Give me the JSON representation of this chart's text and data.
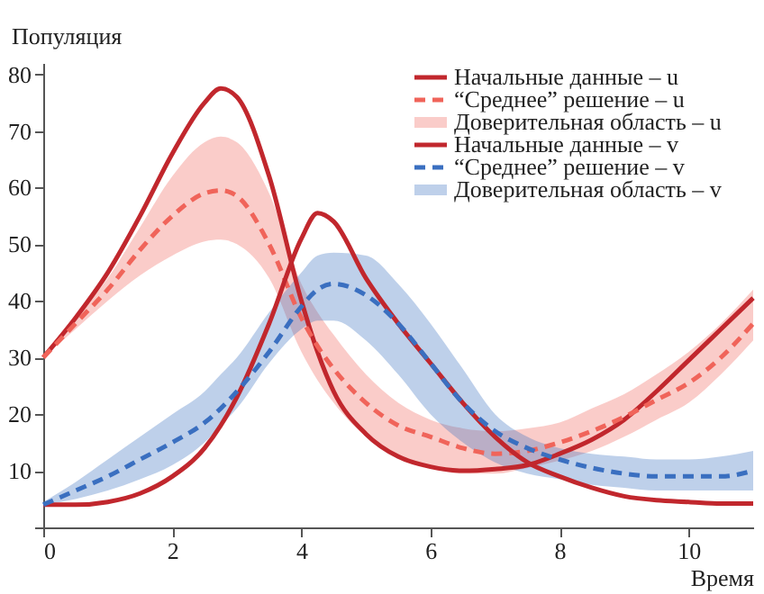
{
  "chart_data": {
    "type": "line",
    "xlabel": "Время",
    "ylabel": "Популяция",
    "x": [
      0,
      0.5,
      1,
      1.5,
      2,
      2.5,
      2.75,
      3,
      3.5,
      4,
      4.25,
      4.5,
      5,
      5.5,
      6,
      6.5,
      7,
      7.5,
      8,
      8.5,
      9,
      9.5,
      10,
      10.5,
      11
    ],
    "xlim": [
      0,
      11
    ],
    "xticks": [
      0,
      2,
      4,
      6,
      8,
      10
    ],
    "ylim": [
      0,
      82
    ],
    "yticks": [
      {
        "value": 0,
        "label": null
      },
      10,
      20,
      30,
      40,
      50,
      60,
      70,
      80
    ],
    "grid": false,
    "legend": "top right",
    "annotations": [
      "Доверительная область – u",
      "Доверительная область – v"
    ],
    "series": [
      {
        "name": "Начальные данные – u",
        "color": "#c1272d",
        "line_style": "solid",
        "values": [
          30,
          37,
          45,
          55,
          66,
          75,
          77.5,
          76,
          62,
          40,
          31,
          24,
          16.5,
          12.5,
          10.7,
          10,
          10.3,
          11,
          13,
          15.5,
          19,
          24,
          29.5,
          35,
          40.5
        ]
      },
      {
        "name": "“Среднее” решение – u",
        "color": "#f0645a",
        "line_style": "dashed",
        "values": [
          30,
          36,
          42,
          49,
          55,
          59,
          59.5,
          58.5,
          50,
          37,
          32,
          28,
          22,
          18,
          16,
          14,
          13,
          13.5,
          15,
          17,
          19.5,
          22.5,
          25.5,
          30,
          36
        ],
        "lower": [
          30,
          35,
          40,
          44.5,
          48,
          50.5,
          50.8,
          50,
          44,
          31,
          26,
          22,
          16,
          12.5,
          10.5,
          9.5,
          9.5,
          10.5,
          11.8,
          13.5,
          16,
          19,
          22,
          27,
          33
        ],
        "upper": [
          30,
          37,
          44,
          53,
          62,
          68,
          69,
          68,
          59,
          43,
          38,
          34,
          27,
          22,
          19,
          17.5,
          17,
          17.5,
          18.5,
          21,
          23.5,
          27,
          31,
          36,
          42
        ]
      },
      {
        "name": "Начальные данные – v",
        "color": "#c1272d",
        "line_style": "solid",
        "values": [
          4,
          4,
          4.5,
          6,
          9,
          14,
          18,
          23,
          36,
          51,
          55.5,
          54,
          44,
          36,
          29,
          22,
          16,
          11.5,
          9,
          7,
          5.5,
          4.8,
          4.5,
          4.2,
          4.2
        ]
      },
      {
        "name": "“Среднее” решение – v",
        "color": "#3a6fc0",
        "line_style": "dashed",
        "values": [
          4,
          6.5,
          9,
          12,
          15,
          18.5,
          21,
          24,
          31,
          39,
          42,
          43,
          41,
          36,
          29,
          22,
          17,
          14,
          12,
          10.5,
          9.5,
          9,
          9,
          9,
          10
        ],
        "lower": [
          4,
          5,
          6.5,
          8.5,
          11,
          15,
          18,
          21,
          29,
          35,
          36.5,
          36.5,
          33,
          27,
          20,
          15,
          11.5,
          9.5,
          8.5,
          7.5,
          7,
          6.5,
          6.5,
          6.5,
          6.5
        ],
        "upper": [
          4.5,
          8,
          12,
          16,
          20,
          24,
          27,
          30,
          38,
          45,
          48,
          48.5,
          48,
          43,
          36,
          28,
          20,
          16,
          14,
          13,
          12.5,
          12,
          12,
          12.5,
          13.5
        ]
      }
    ]
  }
}
